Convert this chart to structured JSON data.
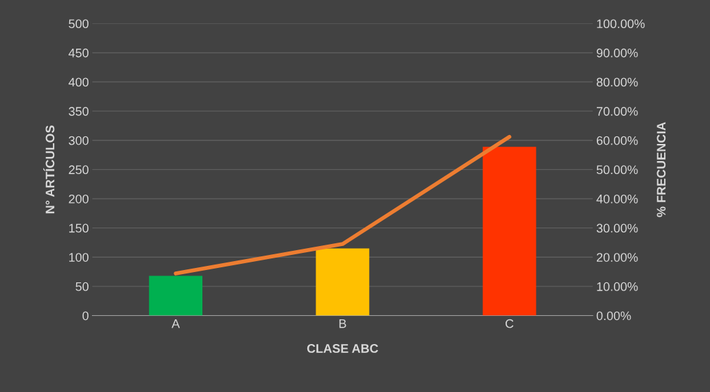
{
  "chart_data": {
    "type": "bar",
    "xlabel": "CLASE ABC",
    "ylabel": "N° ARTÍCULOS",
    "y2label": "% FRECUENCIA",
    "categories": [
      "A",
      "B",
      "C"
    ],
    "series": [
      {
        "colors": [
          "#00b050",
          "#ffc000",
          "#ff3300"
        ],
        "values": [
          68,
          115,
          289
        ]
      },
      {
        "type": "line",
        "axis": "y2",
        "color": "#ed7d31",
        "values": [
          14.4,
          24.5,
          61.2
        ]
      }
    ],
    "ylim": [
      0,
      500
    ],
    "yticks": [
      0,
      50,
      100,
      150,
      200,
      250,
      300,
      350,
      400,
      450,
      500
    ],
    "y2lim": [
      0,
      100
    ],
    "y2ticks": [
      {
        "value": 0,
        "label": "0.00%"
      },
      {
        "value": 10,
        "label": "10.00%"
      },
      {
        "value": 20,
        "label": "20.00%"
      },
      {
        "value": 30,
        "label": "30.00%"
      },
      {
        "value": 40,
        "label": "40.00%"
      },
      {
        "value": 50,
        "label": "50.00%"
      },
      {
        "value": 60,
        "label": "60.00%"
      },
      {
        "value": 70,
        "label": "70.00%"
      },
      {
        "value": 80,
        "label": "80.00%"
      },
      {
        "value": 90,
        "label": "90.00%"
      },
      {
        "value": 100,
        "label": "100.00%"
      }
    ],
    "grid": "y",
    "marker": "none",
    "line_style": "solid"
  }
}
